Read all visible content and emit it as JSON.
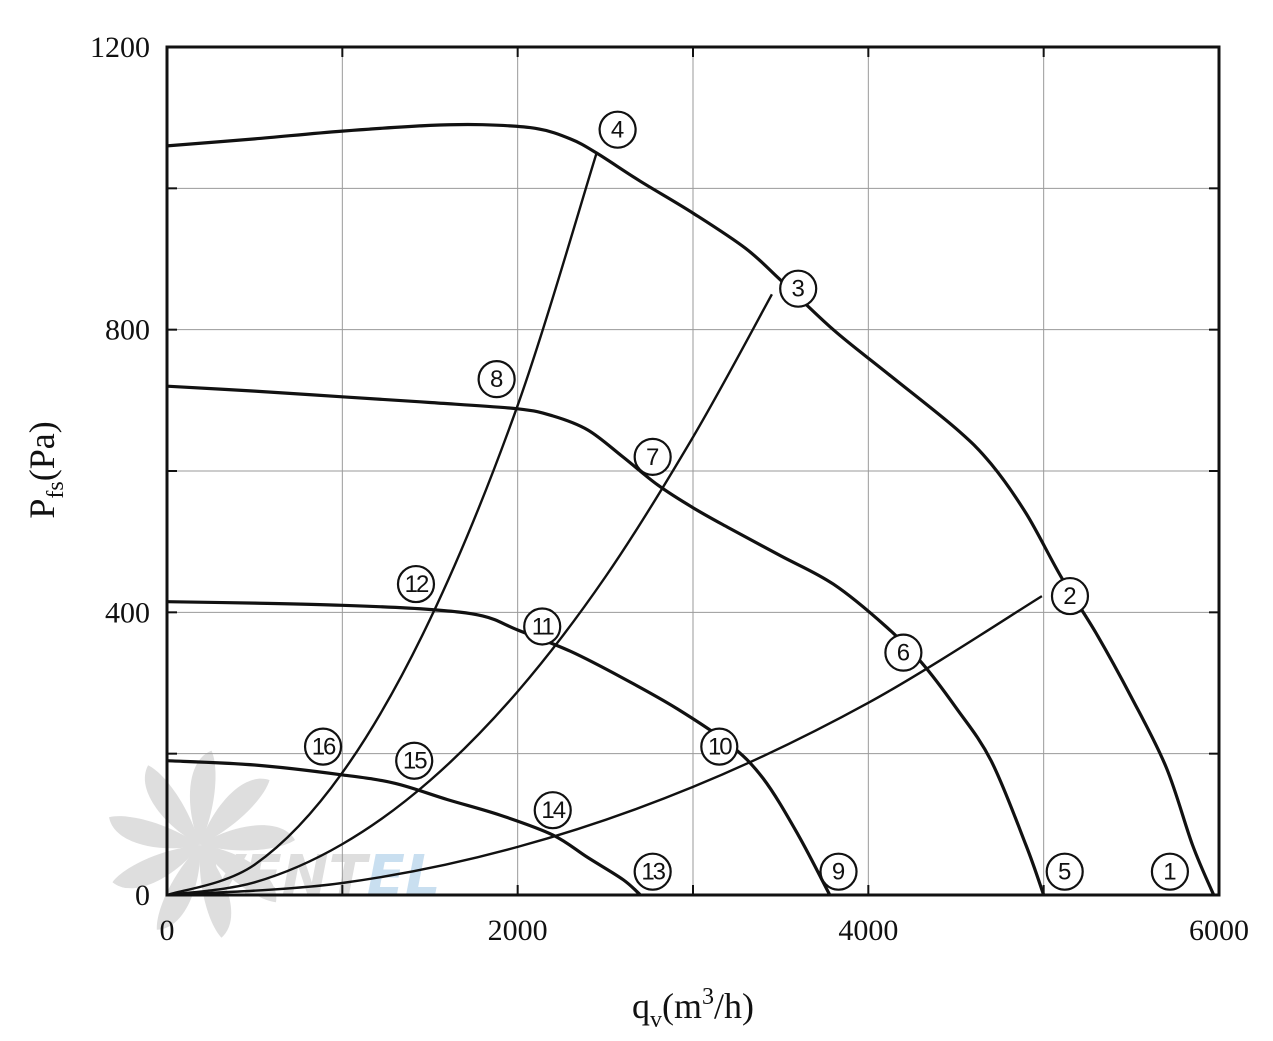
{
  "colors": {
    "curve": "#111111",
    "grid": "#9a9a9a",
    "watermark": "#dedede",
    "watermark_accent": "#c9dff0"
  },
  "watermark": {
    "text_main": "VENT",
    "text_accent": "EL"
  },
  "chart_data": {
    "type": "line",
    "xlabel": {
      "main": "q",
      "sub": "v",
      "rest_before_sup": "(m",
      "sup": "3",
      "rest_after_sup": "/h)"
    },
    "ylabel": {
      "main": "P",
      "sub": "fs",
      "rest": "(Pa)"
    },
    "xlim": [
      0,
      6000
    ],
    "ylim": [
      0,
      1200
    ],
    "grid": true,
    "xticks": [
      0,
      1000,
      2000,
      3000,
      4000,
      5000,
      6000
    ],
    "yticks": [
      0,
      200,
      400,
      600,
      800,
      1000,
      1200
    ],
    "xtick_labels": [
      "0",
      "",
      "2000",
      "",
      "4000",
      "",
      "6000"
    ],
    "ytick_labels": [
      "0",
      "",
      "400",
      "",
      "800",
      "",
      "1200"
    ],
    "fan_curves": [
      {
        "points": [
          [
            0,
            1060
          ],
          [
            500,
            1070
          ],
          [
            1000,
            1081
          ],
          [
            1500,
            1089
          ],
          [
            1800,
            1090
          ],
          [
            2100,
            1085
          ],
          [
            2300,
            1070
          ],
          [
            2450,
            1050
          ],
          [
            2700,
            1010
          ],
          [
            3000,
            965
          ],
          [
            3300,
            915
          ],
          [
            3500,
            870
          ],
          [
            3800,
            800
          ],
          [
            4100,
            740
          ],
          [
            4500,
            660
          ],
          [
            4700,
            610
          ],
          [
            4900,
            540
          ],
          [
            5100,
            450
          ],
          [
            5300,
            370
          ],
          [
            5500,
            280
          ],
          [
            5700,
            180
          ],
          [
            5850,
            70
          ],
          [
            5970,
            0
          ]
        ]
      },
      {
        "points": [
          [
            0,
            720
          ],
          [
            500,
            713
          ],
          [
            1000,
            705
          ],
          [
            1500,
            697
          ],
          [
            2000,
            688
          ],
          [
            2200,
            678
          ],
          [
            2400,
            658
          ],
          [
            2600,
            620
          ],
          [
            2800,
            580
          ],
          [
            3000,
            548
          ],
          [
            3200,
            520
          ],
          [
            3500,
            480
          ],
          [
            3800,
            440
          ],
          [
            4100,
            380
          ],
          [
            4300,
            330
          ],
          [
            4500,
            265
          ],
          [
            4700,
            190
          ],
          [
            4900,
            70
          ],
          [
            5000,
            0
          ]
        ]
      },
      {
        "points": [
          [
            0,
            415
          ],
          [
            500,
            413
          ],
          [
            1000,
            410
          ],
          [
            1500,
            404
          ],
          [
            1800,
            395
          ],
          [
            2000,
            375
          ],
          [
            2300,
            345
          ],
          [
            2600,
            307
          ],
          [
            2900,
            265
          ],
          [
            3200,
            215
          ],
          [
            3400,
            165
          ],
          [
            3600,
            85
          ],
          [
            3780,
            0
          ]
        ]
      },
      {
        "points": [
          [
            0,
            190
          ],
          [
            500,
            184
          ],
          [
            1000,
            170
          ],
          [
            1300,
            158
          ],
          [
            1600,
            135
          ],
          [
            1900,
            113
          ],
          [
            2200,
            85
          ],
          [
            2400,
            53
          ],
          [
            2600,
            22
          ],
          [
            2700,
            0
          ]
        ]
      }
    ],
    "system_curves": [
      {
        "points": [
          [
            0,
            0
          ],
          [
            1000,
            17
          ],
          [
            2000,
            68
          ],
          [
            3000,
            153
          ],
          [
            4000,
            272
          ],
          [
            4990,
            423
          ]
        ]
      },
      {
        "points": [
          [
            0,
            0
          ],
          [
            500,
            18
          ],
          [
            1000,
            72
          ],
          [
            1500,
            162
          ],
          [
            2000,
            288
          ],
          [
            2500,
            450
          ],
          [
            3000,
            648
          ],
          [
            3450,
            850
          ]
        ]
      },
      {
        "points": [
          [
            0,
            0
          ],
          [
            500,
            43
          ],
          [
            1000,
            173
          ],
          [
            1500,
            390
          ],
          [
            2000,
            693
          ],
          [
            2450,
            1050
          ]
        ]
      }
    ],
    "markers": [
      {
        "label": "1",
        "x": 5720,
        "y": 33
      },
      {
        "label": "2",
        "x": 5150,
        "y": 423
      },
      {
        "label": "3",
        "x": 3600,
        "y": 858
      },
      {
        "label": "4",
        "x": 2570,
        "y": 1083
      },
      {
        "label": "5",
        "x": 5120,
        "y": 33
      },
      {
        "label": "6",
        "x": 4200,
        "y": 343
      },
      {
        "label": "7",
        "x": 2770,
        "y": 620
      },
      {
        "label": "8",
        "x": 1880,
        "y": 730
      },
      {
        "label": "9",
        "x": 3830,
        "y": 33
      },
      {
        "label": "10",
        "x": 3150,
        "y": 210
      },
      {
        "label": "11",
        "x": 2140,
        "y": 380
      },
      {
        "label": "12",
        "x": 1420,
        "y": 440
      },
      {
        "label": "13",
        "x": 2770,
        "y": 33
      },
      {
        "label": "14",
        "x": 2200,
        "y": 120
      },
      {
        "label": "15",
        "x": 1410,
        "y": 190
      },
      {
        "label": "16",
        "x": 890,
        "y": 210
      }
    ]
  }
}
